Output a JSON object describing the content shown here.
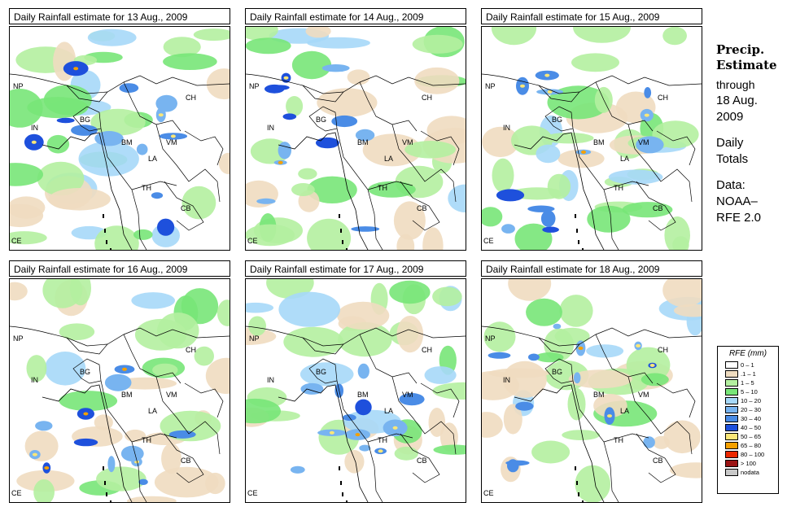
{
  "panels": [
    {
      "title": "Daily Rainfall estimate for  13 Aug., 2009",
      "map_alt": "rainfall-map"
    },
    {
      "title": "Daily Rainfall estimate for  14 Aug., 2009",
      "map_alt": "rainfall-map"
    },
    {
      "title": "Daily Rainfall estimate for  15 Aug., 2009",
      "map_alt": "rainfall-map"
    },
    {
      "title": "Daily Rainfall estimate for  16 Aug., 2009",
      "map_alt": "rainfall-map"
    },
    {
      "title": "Daily Rainfall estimate for  17 Aug., 2009",
      "map_alt": "rainfall-map"
    },
    {
      "title": "Daily Rainfall estimate for  18 Aug., 2009",
      "map_alt": "rainfall-map"
    }
  ],
  "country_labels": [
    "NP",
    "CH",
    "IN",
    "BG",
    "BM",
    "VM",
    "LA",
    "TH",
    "CB",
    "CE"
  ],
  "side_text": {
    "line1": "Precip.",
    "line2": "Estimate",
    "line3": "through",
    "line4": "18 Aug.",
    "line5": "2009",
    "line6": "Daily",
    "line7": "Totals",
    "line8": "Data:",
    "line9": "NOAA–",
    "line10": "RFE 2.0"
  },
  "legend": {
    "title": "RFE (mm)",
    "items": [
      {
        "label": "0 – 1",
        "color": "#ffffff"
      },
      {
        "label": ".1 – 1",
        "color": "#efdcc0"
      },
      {
        "label": "1 – 5",
        "color": "#b4f0a0"
      },
      {
        "label": "5 – 10",
        "color": "#78e678"
      },
      {
        "label": "10 – 20",
        "color": "#a6d8f8"
      },
      {
        "label": "20 – 30",
        "color": "#78b4f0"
      },
      {
        "label": "30 – 40",
        "color": "#4a8ce6"
      },
      {
        "label": "40 – 50",
        "color": "#1e50dc"
      },
      {
        "label": "50 – 65",
        "color": "#fae678"
      },
      {
        "label": "65 – 80",
        "color": "#f5a000"
      },
      {
        "label": "80 – 100",
        "color": "#eb2800"
      },
      {
        "label": "> 100",
        "color": "#9b1414"
      },
      {
        "label": "nodata",
        "color": "#c8c8c8"
      }
    ]
  }
}
